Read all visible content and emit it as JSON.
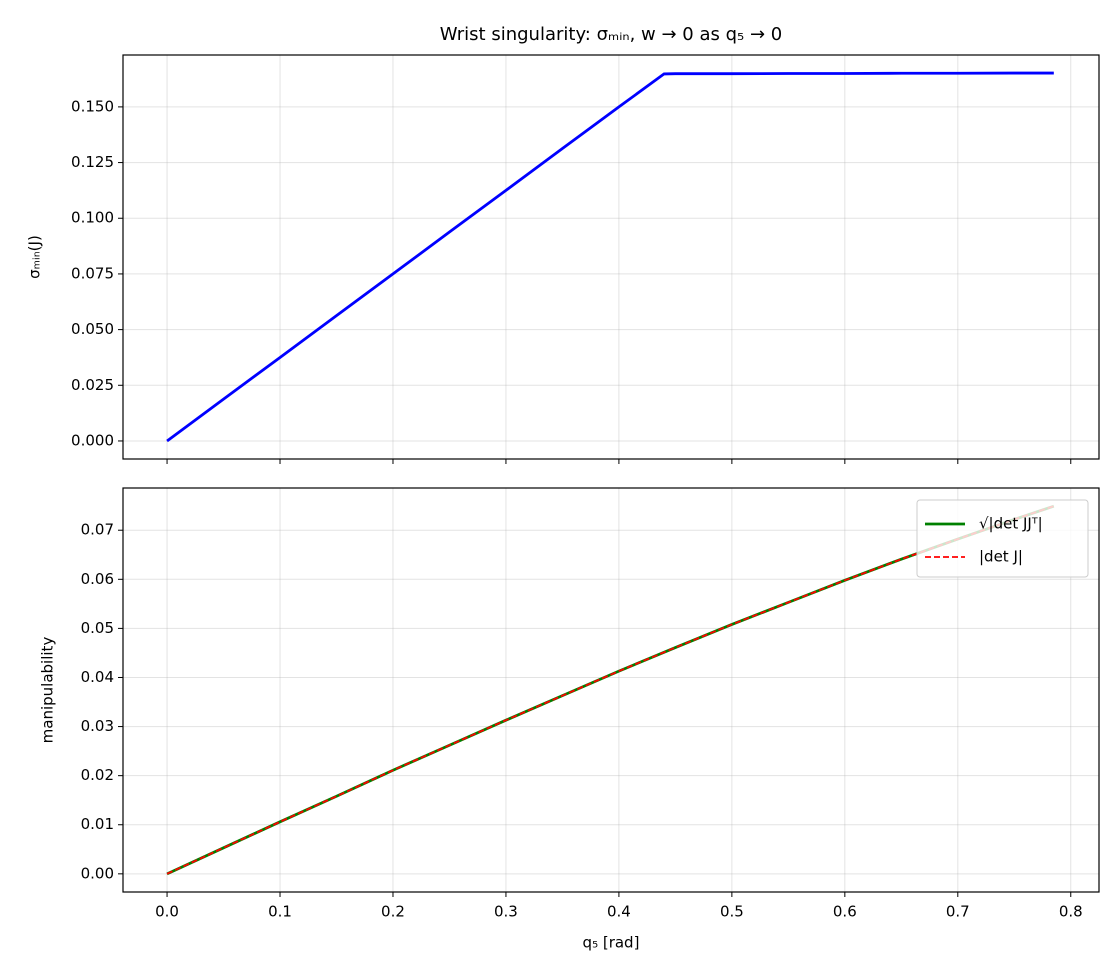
{
  "chart_data": [
    {
      "type": "line",
      "title": "Wrist singularity:  σₘᵢₙ, w → 0 as q₅ → 0",
      "y_label": "σₘᵢₙ(J)",
      "x": [
        0,
        0.05,
        0.1,
        0.15,
        0.2,
        0.25,
        0.3,
        0.35,
        0.4,
        0.44,
        0.45,
        0.5,
        0.55,
        0.6,
        0.65,
        0.7,
        0.75,
        0.785
      ],
      "series": [
        {
          "name": "σₘᵢₙ",
          "color": "#0000ff",
          "values": [
            0,
            0.0188,
            0.0375,
            0.0563,
            0.075,
            0.0938,
            0.1125,
            0.1313,
            0.15,
            0.1648,
            0.1649,
            0.1649,
            0.165,
            0.165,
            0.1651,
            0.1651,
            0.1652,
            0.1652
          ]
        }
      ],
      "xlim": [
        -0.039,
        0.825
      ],
      "ylim": [
        -0.0081,
        0.1733
      ],
      "xticks": [
        0.0,
        0.1,
        0.2,
        0.3,
        0.4,
        0.5,
        0.6,
        0.7,
        0.8
      ],
      "show_xtick_labels": false,
      "yticks": [
        {
          "value": 0,
          "label": "0.000"
        },
        {
          "value": 0.025,
          "label": "0.025"
        },
        {
          "value": 0.05,
          "label": "0.050"
        },
        {
          "value": 0.075,
          "label": "0.075"
        },
        {
          "value": 0.1,
          "label": "0.100"
        },
        {
          "value": 0.125,
          "label": "0.125"
        },
        {
          "value": 0.15,
          "label": "0.150"
        }
      ],
      "grid": true,
      "legend": false
    },
    {
      "type": "line",
      "x_label": "q₅  [rad]",
      "y_label": "manipulability",
      "x": [
        0,
        0.05,
        0.1,
        0.15,
        0.2,
        0.25,
        0.3,
        0.35,
        0.4,
        0.45,
        0.5,
        0.55,
        0.6,
        0.65,
        0.7,
        0.75,
        0.785
      ],
      "series": [
        {
          "name": "√|det JJᵀ|",
          "color": "#008000",
          "dash": false,
          "values": [
            0,
            0.0053,
            0.0106,
            0.0158,
            0.0211,
            0.0262,
            0.0313,
            0.0363,
            0.0413,
            0.0461,
            0.0508,
            0.0553,
            0.0598,
            0.0641,
            0.0682,
            0.0722,
            0.0749
          ]
        },
        {
          "name": "|det J|",
          "color": "#ff0000",
          "dash": true,
          "values": [
            0,
            0.0053,
            0.0106,
            0.0158,
            0.0211,
            0.0262,
            0.0313,
            0.0363,
            0.0413,
            0.0461,
            0.0508,
            0.0553,
            0.0598,
            0.0641,
            0.0682,
            0.0722,
            0.0749
          ]
        }
      ],
      "xlim": [
        -0.039,
        0.825
      ],
      "ylim": [
        -0.0037,
        0.0786
      ],
      "xticks": [
        {
          "value": 0,
          "label": "0.0"
        },
        0.1,
        0.2,
        0.3,
        0.4,
        0.5,
        0.6,
        0.7,
        0.8
      ],
      "show_xtick_labels": true,
      "yticks": [
        {
          "value": 0,
          "label": "0.00"
        },
        0.01,
        0.02,
        0.03,
        0.04,
        0.05,
        0.06,
        0.07
      ],
      "grid": true,
      "legend": "upper right"
    }
  ]
}
